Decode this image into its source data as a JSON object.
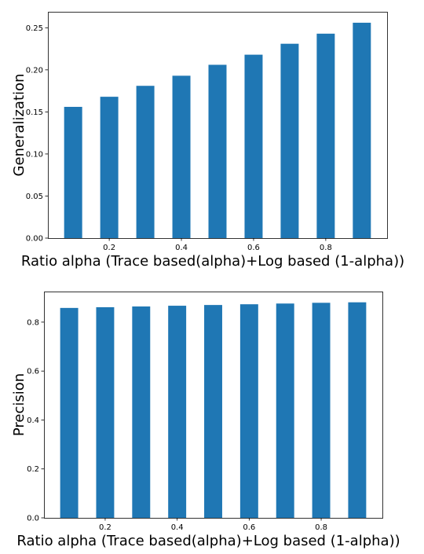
{
  "chart_data": [
    {
      "type": "bar",
      "xlabel": "Ratio alpha (Trace based(alpha)+Log based (1-alpha))",
      "ylabel": "Generalization",
      "x": [
        0.1,
        0.2,
        0.3,
        0.4,
        0.5,
        0.6,
        0.7,
        0.8,
        0.9
      ],
      "values": [
        0.156,
        0.168,
        0.181,
        0.193,
        0.206,
        0.218,
        0.231,
        0.243,
        0.256
      ],
      "color": "#1f77b4",
      "xlim": [
        0.03,
        0.97
      ],
      "ylim": [
        0,
        0.269
      ],
      "xticks": [
        0.2,
        0.4,
        0.6,
        0.8
      ],
      "xtick_labels": [
        "0.2",
        "0.4",
        "0.6",
        "0.8"
      ],
      "yticks": [
        0,
        0.05,
        0.1,
        0.15,
        0.2,
        0.25
      ],
      "ytick_labels": [
        "0.00",
        "0.05",
        "0.10",
        "0.15",
        "0.20",
        "0.25"
      ],
      "grid": false
    },
    {
      "type": "bar",
      "xlabel": "Ratio alpha (Trace based(alpha)+Log based (1-alpha))",
      "ylabel": "Precision",
      "x": [
        0.1,
        0.2,
        0.3,
        0.4,
        0.5,
        0.6,
        0.7,
        0.8,
        0.9
      ],
      "values": [
        0.858,
        0.861,
        0.864,
        0.867,
        0.87,
        0.873,
        0.876,
        0.879,
        0.881
      ],
      "color": "#1f77b4",
      "xlim": [
        0.03,
        0.97
      ],
      "ylim": [
        0,
        0.925
      ],
      "xticks": [
        0.2,
        0.4,
        0.6,
        0.8
      ],
      "xtick_labels": [
        "0.2",
        "0.4",
        "0.6",
        "0.8"
      ],
      "yticks": [
        0,
        0.2,
        0.4,
        0.6,
        0.8
      ],
      "ytick_labels": [
        "0.0",
        "0.2",
        "0.4",
        "0.6",
        "0.8"
      ],
      "grid": false
    }
  ]
}
